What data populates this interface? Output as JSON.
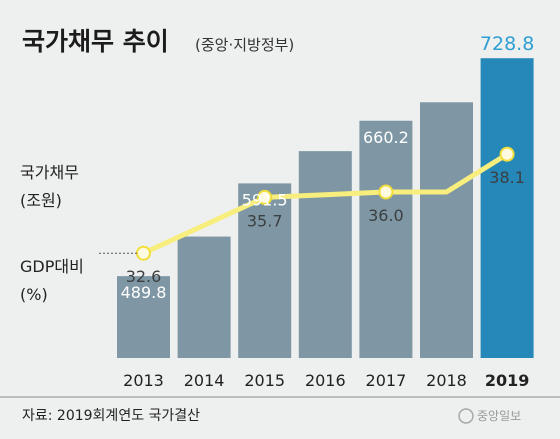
{
  "title": "국가채무 추이",
  "subtitle": "(중앙·지방정부)",
  "source": "자료: 2019회계연도 국가결산",
  "logo": "중앙일보",
  "colors": {
    "background": "#eef0ef",
    "bar": "#7f97a4",
    "bar_highlight": "#2688b8",
    "line": "#f7ee7e",
    "marker_fill": "#fffbe0",
    "marker_stroke": "#f2de3a",
    "highlight_label": "#2e9fd3"
  },
  "chart_data": {
    "type": "bar",
    "categories": [
      "2013",
      "2014",
      "2015",
      "2016",
      "2017",
      "2018",
      "2019"
    ],
    "series": [
      {
        "name": "국가채무",
        "unit": "(조원)",
        "values": [
          489.8,
          533.2,
          591.5,
          626.9,
          660.2,
          680.5,
          728.8
        ],
        "labels": [
          "489.8",
          "",
          "591.5",
          "",
          "660.2",
          "",
          "728.8"
        ]
      },
      {
        "name": "GDP대비",
        "unit": "(%)",
        "type": "line",
        "values": [
          32.6,
          null,
          35.7,
          null,
          36.0,
          null,
          38.1
        ],
        "labels": [
          "32.6",
          "",
          "35.7",
          "",
          "36.0",
          "",
          "38.1"
        ]
      }
    ],
    "highlight_category": "2019",
    "grid": false,
    "legend": "left"
  }
}
